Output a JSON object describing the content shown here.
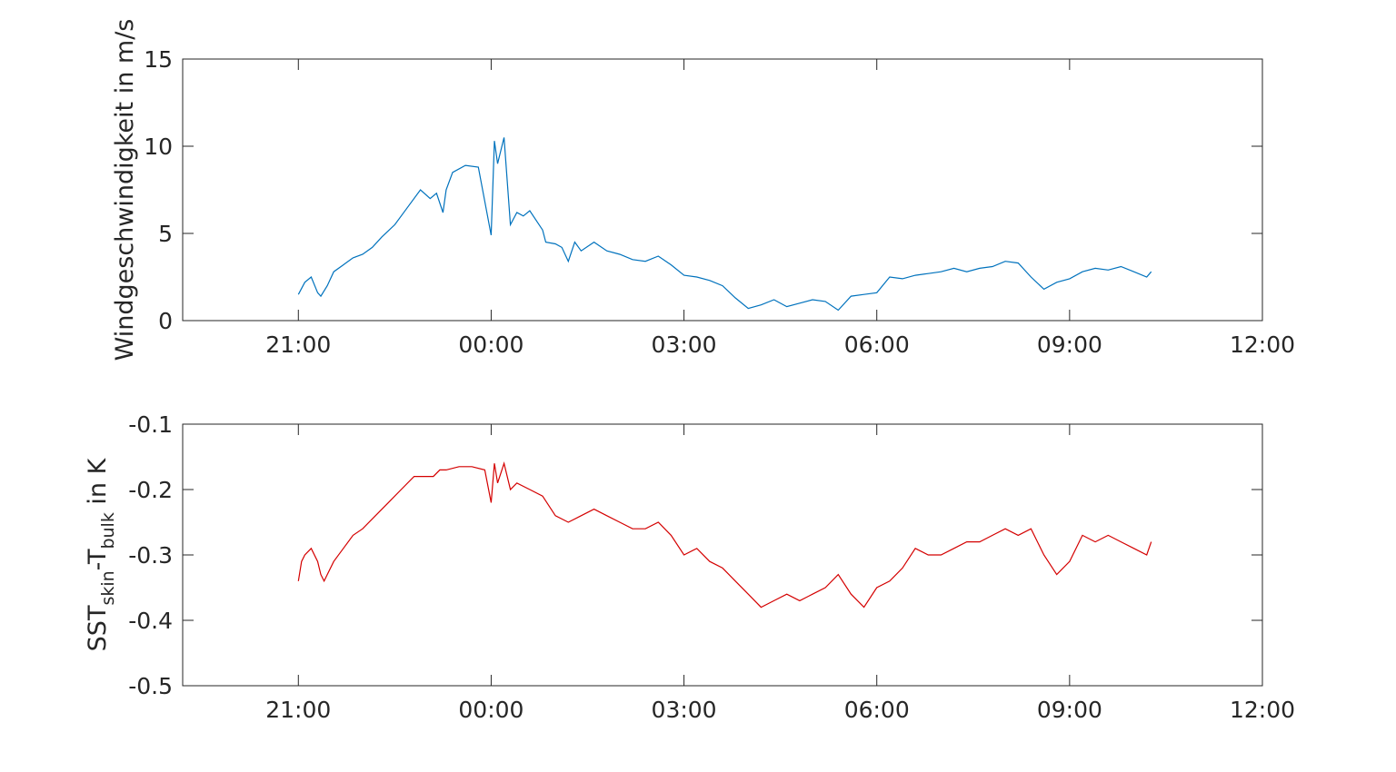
{
  "chart_data": [
    {
      "type": "line",
      "ylabel": "Windgeschwindigkeit in m/s",
      "x_ticks": [
        "21:00",
        "00:00",
        "03:00",
        "06:00",
        "09:00",
        "12:00"
      ],
      "x_tick_hours": [
        21,
        24,
        27,
        30,
        33,
        36
      ],
      "xlim_hours": [
        19.2,
        36
      ],
      "ylim": [
        0,
        15
      ],
      "y_ticks": [
        "0",
        "5",
        "10",
        "15"
      ],
      "y_tick_values": [
        0,
        5,
        10,
        15
      ],
      "grid": false,
      "color": "#0072bd",
      "series": [
        {
          "x_hours": [
            21.0,
            21.1,
            21.2,
            21.3,
            21.35,
            21.45,
            21.55,
            21.7,
            21.85,
            22.0,
            22.15,
            22.3,
            22.5,
            22.7,
            22.9,
            23.05,
            23.15,
            23.25,
            23.3,
            23.4,
            23.6,
            23.8,
            24.0,
            24.05,
            24.1,
            24.2,
            24.3,
            24.4,
            24.5,
            24.6,
            24.8,
            24.85,
            25.0,
            25.1,
            25.2,
            25.3,
            25.4,
            25.6,
            25.8,
            26.0,
            26.2,
            26.4,
            26.6,
            26.8,
            27.0,
            27.2,
            27.4,
            27.6,
            27.8,
            28.0,
            28.2,
            28.4,
            28.6,
            28.8,
            29.0,
            29.2,
            29.4,
            29.6,
            29.8,
            30.0,
            30.2,
            30.4,
            30.6,
            30.8,
            31.0,
            31.2,
            31.4,
            31.6,
            31.8,
            32.0,
            32.2,
            32.4,
            32.6,
            32.8,
            33.0,
            33.2,
            33.4,
            33.6,
            33.8,
            34.0,
            34.2,
            34.27
          ],
          "values": [
            1.5,
            2.2,
            2.5,
            1.6,
            1.4,
            2.0,
            2.8,
            3.2,
            3.6,
            3.8,
            4.2,
            4.8,
            5.5,
            6.5,
            7.5,
            7.0,
            7.3,
            6.2,
            7.5,
            8.5,
            8.9,
            8.8,
            4.9,
            10.3,
            9.0,
            10.5,
            5.5,
            6.2,
            6.0,
            6.3,
            5.2,
            4.5,
            4.4,
            4.2,
            3.4,
            4.5,
            4.0,
            4.5,
            4.0,
            3.8,
            3.5,
            3.4,
            3.7,
            3.2,
            2.6,
            2.5,
            2.3,
            2.0,
            1.3,
            0.7,
            0.9,
            1.2,
            0.8,
            1.0,
            1.2,
            1.1,
            0.6,
            1.4,
            1.5,
            1.6,
            2.5,
            2.4,
            2.6,
            2.7,
            2.8,
            3.0,
            2.8,
            3.0,
            3.1,
            3.4,
            3.3,
            2.5,
            1.8,
            2.2,
            2.4,
            2.8,
            3.0,
            2.9,
            3.1,
            2.8,
            2.5,
            2.8
          ]
        }
      ]
    },
    {
      "type": "line",
      "ylabel_main": "SST",
      "ylabel_sub1": "skin",
      "ylabel_mid": "-T",
      "ylabel_sub2": "bulk",
      "ylabel_tail": " in K",
      "x_ticks": [
        "21:00",
        "00:00",
        "03:00",
        "06:00",
        "09:00",
        "12:00"
      ],
      "x_tick_hours": [
        21,
        24,
        27,
        30,
        33,
        36
      ],
      "xlim_hours": [
        19.2,
        36
      ],
      "ylim": [
        -0.5,
        -0.1
      ],
      "y_ticks": [
        "-0.5",
        "-0.4",
        "-0.3",
        "-0.2",
        "-0.1"
      ],
      "y_tick_values": [
        -0.5,
        -0.4,
        -0.3,
        -0.2,
        -0.1
      ],
      "grid": false,
      "color": "#d40000",
      "series": [
        {
          "x_hours": [
            21.0,
            21.05,
            21.1,
            21.2,
            21.3,
            21.35,
            21.4,
            21.45,
            21.55,
            21.7,
            21.85,
            22.0,
            22.2,
            22.4,
            22.6,
            22.8,
            23.0,
            23.1,
            23.2,
            23.3,
            23.5,
            23.7,
            23.9,
            24.0,
            24.05,
            24.1,
            24.2,
            24.3,
            24.4,
            24.6,
            24.8,
            25.0,
            25.2,
            25.4,
            25.6,
            25.8,
            26.0,
            26.2,
            26.4,
            26.6,
            26.8,
            27.0,
            27.2,
            27.4,
            27.6,
            27.8,
            28.0,
            28.2,
            28.4,
            28.6,
            28.8,
            29.0,
            29.2,
            29.4,
            29.6,
            29.8,
            30.0,
            30.2,
            30.4,
            30.6,
            30.8,
            31.0,
            31.2,
            31.4,
            31.6,
            31.8,
            32.0,
            32.2,
            32.4,
            32.6,
            32.8,
            33.0,
            33.2,
            33.4,
            33.6,
            33.8,
            34.0,
            34.2,
            34.27
          ],
          "values": [
            -0.34,
            -0.31,
            -0.3,
            -0.29,
            -0.31,
            -0.33,
            -0.34,
            -0.33,
            -0.31,
            -0.29,
            -0.27,
            -0.26,
            -0.24,
            -0.22,
            -0.2,
            -0.18,
            -0.18,
            -0.18,
            -0.17,
            -0.17,
            -0.165,
            -0.165,
            -0.17,
            -0.22,
            -0.16,
            -0.19,
            -0.16,
            -0.2,
            -0.19,
            -0.2,
            -0.21,
            -0.24,
            -0.25,
            -0.24,
            -0.23,
            -0.24,
            -0.25,
            -0.26,
            -0.26,
            -0.25,
            -0.27,
            -0.3,
            -0.29,
            -0.31,
            -0.32,
            -0.34,
            -0.36,
            -0.38,
            -0.37,
            -0.36,
            -0.37,
            -0.36,
            -0.35,
            -0.33,
            -0.36,
            -0.38,
            -0.35,
            -0.34,
            -0.32,
            -0.29,
            -0.3,
            -0.3,
            -0.29,
            -0.28,
            -0.28,
            -0.27,
            -0.26,
            -0.27,
            -0.26,
            -0.3,
            -0.33,
            -0.31,
            -0.27,
            -0.28,
            -0.27,
            -0.28,
            -0.29,
            -0.3,
            -0.28
          ]
        }
      ]
    }
  ]
}
